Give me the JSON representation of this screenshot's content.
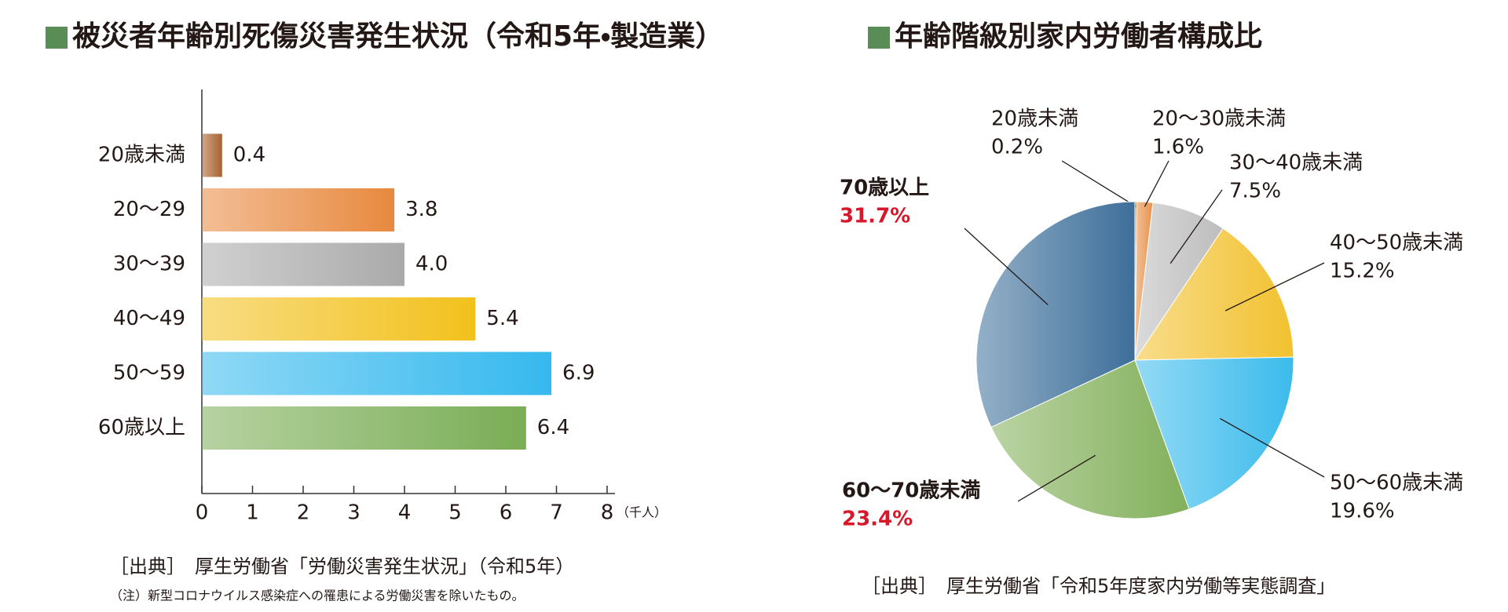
{
  "chart_data": [
    {
      "type": "bar",
      "title": "被災者年齢別死傷災害発生状況（令和5年・製造業）",
      "categories": [
        "20歳未満",
        "20〜29",
        "30〜39",
        "40〜49",
        "50〜59",
        "60歳以上"
      ],
      "values": [
        0.4,
        3.8,
        4.0,
        5.4,
        6.9,
        6.4
      ],
      "value_labels": [
        "0.4",
        "3.8",
        "4.0",
        "5.4",
        "6.9",
        "6.4"
      ],
      "colors": [
        "#a8622e",
        "#e8893f",
        "#aaaaaa",
        "#f2c11c",
        "#35b9ee",
        "#7aad55"
      ],
      "xlim": [
        0,
        8
      ],
      "xticks": [
        0,
        1,
        2,
        3,
        4,
        5,
        6,
        7,
        8
      ],
      "x_unit": "（千人）",
      "source": "［出典］　厚生労働省「労働災害発生状況」（令和5年）",
      "note": "（注）新型コロナウイルス感染症への罹患による労働災害を除いたもの。"
    },
    {
      "type": "pie",
      "title": "年齢階級別家内労働者構成比",
      "categories": [
        "20歳未満",
        "20〜30歳未満",
        "30〜40歳未満",
        "40〜50歳未満",
        "50〜60歳未満",
        "60〜70歳未満",
        "70歳以上"
      ],
      "values": [
        0.2,
        1.6,
        7.5,
        15.2,
        19.6,
        23.4,
        31.7
      ],
      "value_labels": [
        "0.2%",
        "1.6%",
        "7.5%",
        "15.2%",
        "19.6%",
        "23.4%",
        "31.7%"
      ],
      "colors": [
        "#b8743f",
        "#e8914a",
        "#bdbdbd",
        "#f2c12e",
        "#3bbbec",
        "#82b05a",
        "#3d6f9a"
      ],
      "source": "［出典］　厚生労働省「令和5年度家内労働等実態調査」"
    }
  ]
}
